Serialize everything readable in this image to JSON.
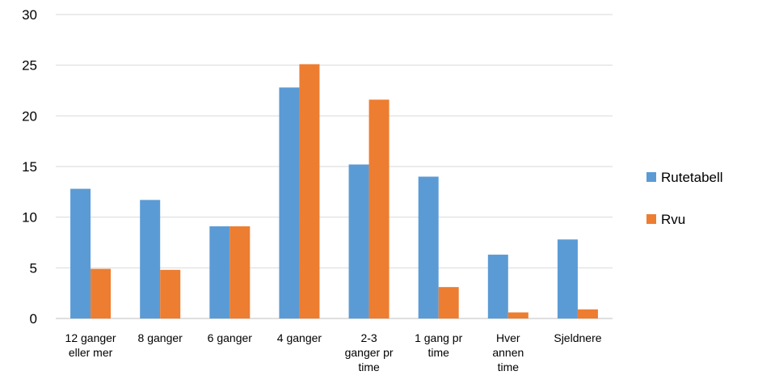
{
  "chart_data": {
    "type": "bar",
    "categories": [
      "12 ganger eller mer",
      "8 ganger",
      "6 ganger",
      "4 ganger",
      "2-3 ganger pr time",
      "1 gang pr time",
      "Hver annen time",
      "Sjeldnere"
    ],
    "category_lines": [
      [
        "12 ganger",
        "eller mer"
      ],
      [
        "8 ganger"
      ],
      [
        "6 ganger"
      ],
      [
        "4 ganger"
      ],
      [
        "2-3",
        "ganger pr",
        "time"
      ],
      [
        "1 gang pr",
        "time"
      ],
      [
        "Hver",
        "annen",
        "time"
      ],
      [
        "Sjeldnere"
      ]
    ],
    "series": [
      {
        "name": "Rutetabell",
        "color": "#5B9BD5",
        "values": [
          12.8,
          11.7,
          9.1,
          22.8,
          15.2,
          14.0,
          6.3,
          7.8
        ]
      },
      {
        "name": "Rvu",
        "color": "#ED7D31",
        "values": [
          4.9,
          4.8,
          9.1,
          25.1,
          21.6,
          3.1,
          0.6,
          0.9
        ]
      }
    ],
    "ylim": [
      0,
      30
    ],
    "yticks": [
      0,
      5,
      10,
      15,
      20,
      25,
      30
    ],
    "grid": true,
    "legend": "right",
    "title": "",
    "xlabel": "",
    "ylabel": ""
  }
}
